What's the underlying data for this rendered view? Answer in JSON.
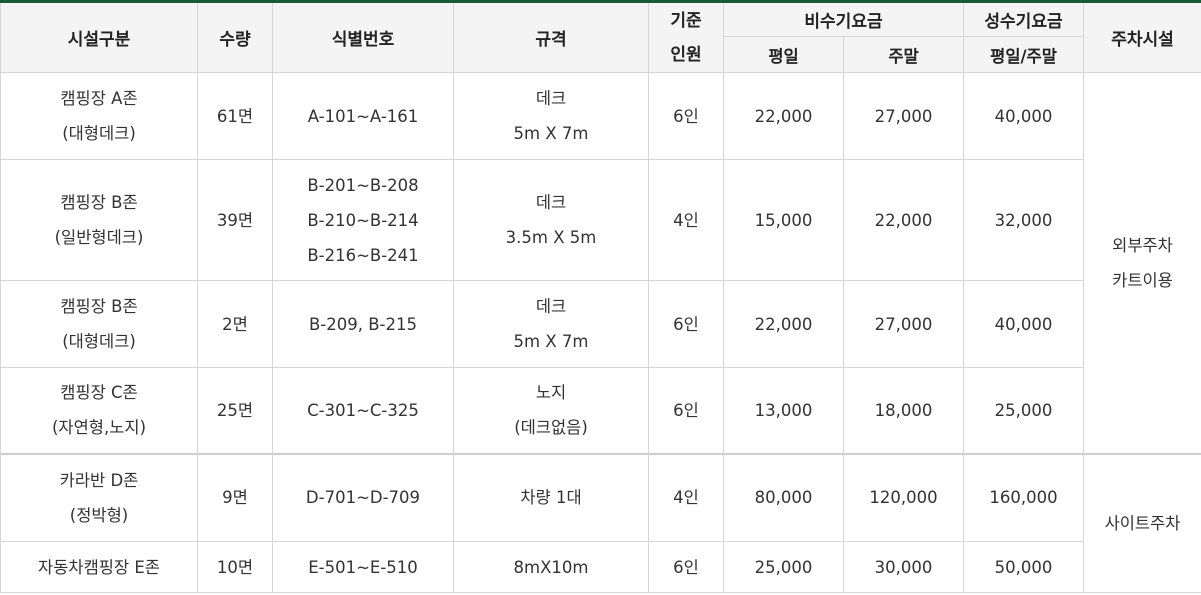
{
  "header": {
    "facility": "시설구분",
    "count": "수량",
    "ident": "식별번호",
    "spec": "규격",
    "capacity_l1": "기준",
    "capacity_l2": "인원",
    "offpeak": "비수기요금",
    "offpeak_weekday": "평일",
    "offpeak_weekend": "주말",
    "peak": "성수기요금",
    "peak_sub": "평일/주말",
    "parking": "주차시설"
  },
  "rows": [
    {
      "facility": [
        "캠핑장 A존",
        "(대형데크)"
      ],
      "count": "61면",
      "ident": [
        "A-101~A-161"
      ],
      "spec": [
        "데크",
        "5m X 7m"
      ],
      "capacity": "6인",
      "offpeak_weekday": "22,000",
      "offpeak_weekend": "27,000",
      "peak": "40,000"
    },
    {
      "facility": [
        "캠핑장 B존",
        "(일반형데크)"
      ],
      "count": "39면",
      "ident": [
        "B-201~B-208",
        "B-210~B-214",
        "B-216~B-241"
      ],
      "spec": [
        "데크",
        "3.5m X 5m"
      ],
      "capacity": "4인",
      "offpeak_weekday": "15,000",
      "offpeak_weekend": "22,000",
      "peak": "32,000"
    },
    {
      "facility": [
        "캠핑장 B존",
        "(대형데크)"
      ],
      "count": "2면",
      "ident": [
        "B-209, B-215"
      ],
      "spec": [
        "데크",
        "5m X 7m"
      ],
      "capacity": "6인",
      "offpeak_weekday": "22,000",
      "offpeak_weekend": "27,000",
      "peak": "40,000"
    },
    {
      "facility": [
        "캠핑장 C존",
        "(자연형,노지)"
      ],
      "count": "25면",
      "ident": [
        "C-301~C-325"
      ],
      "spec": [
        "노지",
        "(데크없음)"
      ],
      "capacity": "6인",
      "offpeak_weekday": "13,000",
      "offpeak_weekend": "18,000",
      "peak": "25,000"
    },
    {
      "facility": [
        "카라반 D존",
        "(정박형)"
      ],
      "count": "9면",
      "ident": [
        "D-701~D-709"
      ],
      "spec": [
        "차량 1대"
      ],
      "capacity": "4인",
      "offpeak_weekday": "80,000",
      "offpeak_weekend": "120,000",
      "peak": "160,000"
    },
    {
      "facility": [
        "자동차캠핑장 E존"
      ],
      "count": "10면",
      "ident": [
        "E-501~E-510"
      ],
      "spec": [
        "8mX10m"
      ],
      "capacity": "6인",
      "offpeak_weekday": "25,000",
      "offpeak_weekend": "30,000",
      "peak": "50,000"
    }
  ],
  "parking": [
    {
      "lines": [
        "외부주차",
        "카트이용"
      ]
    },
    {
      "lines": [
        "사이트주차"
      ]
    }
  ]
}
